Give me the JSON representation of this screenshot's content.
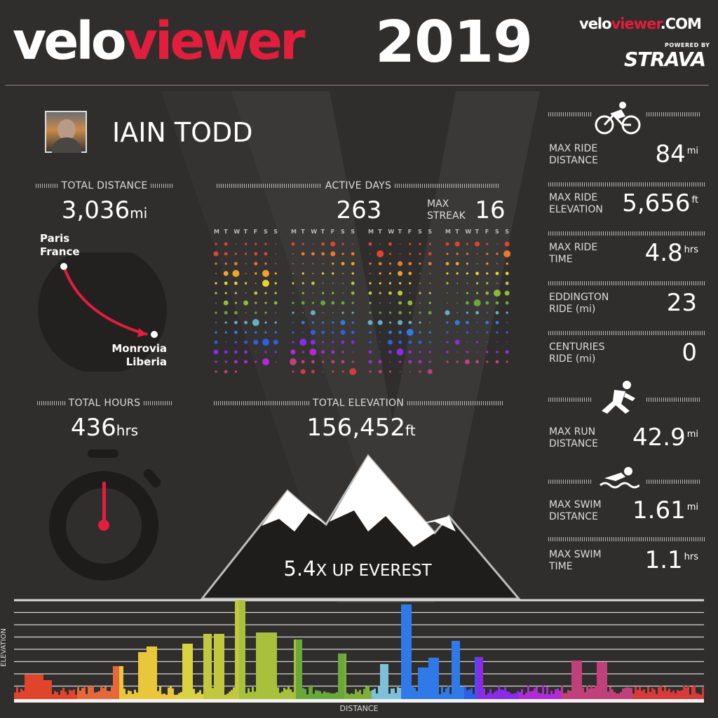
{
  "header": {
    "brand_white": "velo",
    "brand_red": "viewer",
    "year": "2019",
    "site_white": "velo",
    "site_red": "viewer",
    "site_suffix": ".COM",
    "powered_by": "POWERED BY",
    "strava": "STRAVA"
  },
  "profile": {
    "name": "IAIN TODD"
  },
  "total_distance": {
    "label": "TOTAL DISTANCE",
    "value": "3,036",
    "unit": "mi",
    "from_city": "Paris",
    "from_country": "France",
    "to_city": "Monrovia",
    "to_country": "Liberia"
  },
  "active_days": {
    "label": "ACTIVE DAYS",
    "value": "263",
    "max_streak_label_1": "MAX",
    "max_streak_label_2": "STREAK",
    "max_streak_value": "16",
    "day_labels": [
      "M",
      "T",
      "W",
      "T",
      "F",
      "S",
      "S"
    ]
  },
  "total_hours": {
    "label": "TOTAL HOURS",
    "value": "436",
    "unit": "hrs"
  },
  "total_elevation": {
    "label": "TOTAL ELEVATION",
    "value": "156,452",
    "unit": "ft"
  },
  "everest": {
    "value": "5.4",
    "text": "X UP EVEREST"
  },
  "chart_labels": {
    "x": "DISTANCE",
    "y": "ELEVATION"
  },
  "stats": {
    "ride_icon": "bicycle-icon",
    "run_icon": "runner-icon",
    "swim_icon": "swimmer-icon",
    "max_ride_distance": {
      "l1": "MAX RIDE",
      "l2": "DISTANCE",
      "value": "84",
      "unit": "mi"
    },
    "max_ride_elevation": {
      "l1": "MAX RIDE",
      "l2": "ELEVATION",
      "value": "5,656",
      "unit": "ft"
    },
    "max_ride_time": {
      "l1": "MAX RIDE",
      "l2": "TIME",
      "value": "4.8",
      "unit": "hrs"
    },
    "eddington": {
      "l1": "EDDINGTON",
      "l2": "RIDE (mi)",
      "value": "23",
      "unit": ""
    },
    "centuries": {
      "l1": "CENTURIES",
      "l2": "RIDE (mi)",
      "value": "0",
      "unit": ""
    },
    "max_run_distance": {
      "l1": "MAX RUN",
      "l2": "DISTANCE",
      "value": "42.9",
      "unit": "mi"
    },
    "max_swim_distance": {
      "l1": "MAX SWIM",
      "l2": "DISTANCE",
      "value": "1.61",
      "unit": "mi"
    },
    "max_swim_time": {
      "l1": "MAX SWIM",
      "l2": "TIME",
      "value": "1.1",
      "unit": "hrs"
    }
  },
  "colors": {
    "brand_red": "#e31d3c",
    "background": "#302e2c",
    "panel": "#232120"
  }
}
